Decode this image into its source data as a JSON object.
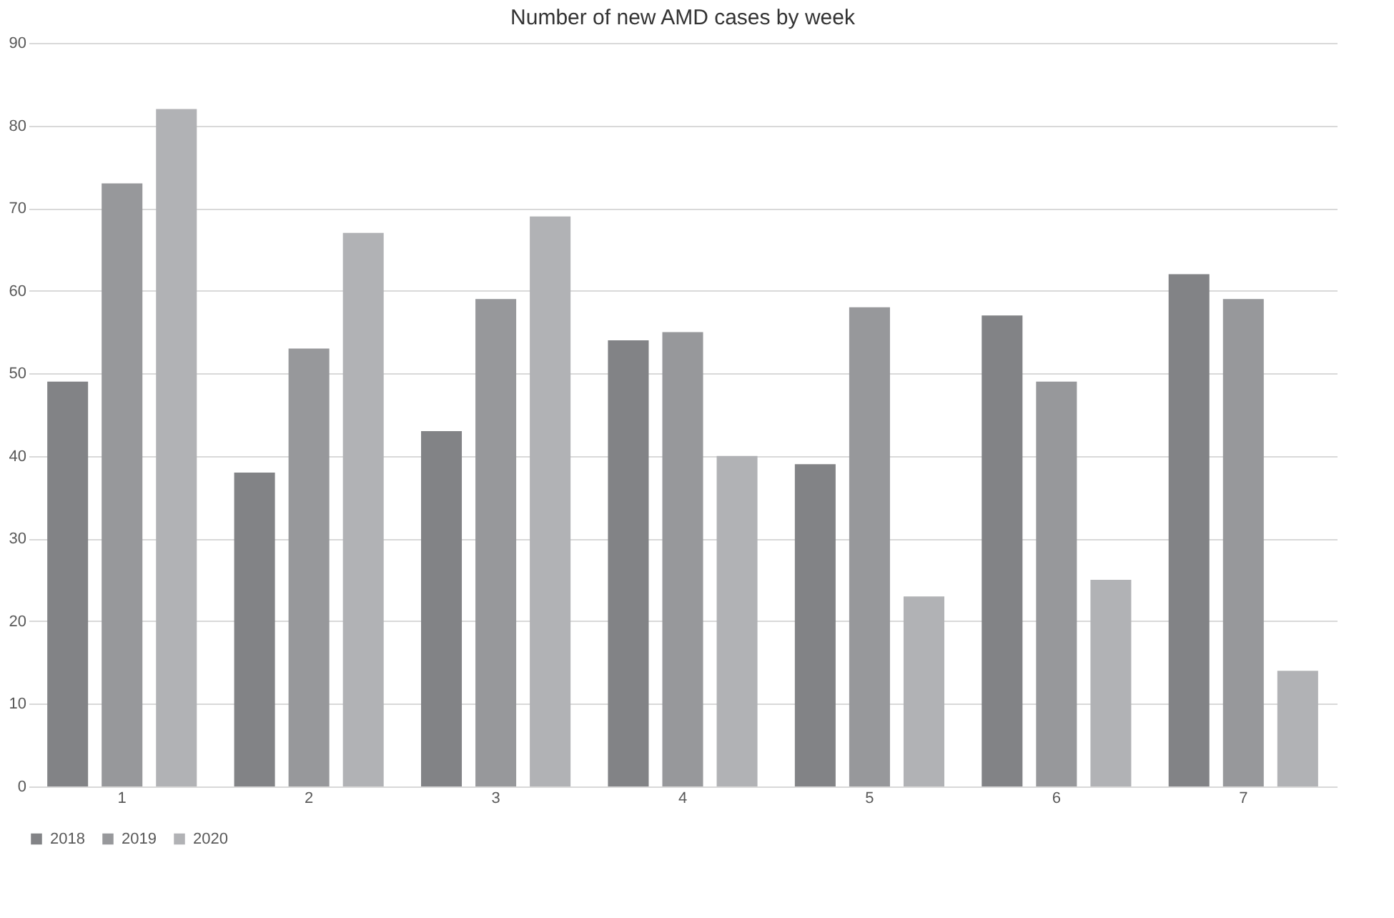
{
  "chart_data": {
    "type": "bar",
    "title": "Number of new AMD cases by week",
    "categories": [
      "1",
      "2",
      "3",
      "4",
      "5",
      "6",
      "7"
    ],
    "series": [
      {
        "name": "2018",
        "color": "#828386",
        "values": [
          49,
          38,
          43,
          54,
          39,
          57,
          62
        ]
      },
      {
        "name": "2019",
        "color": "#97989b",
        "values": [
          73,
          53,
          59,
          55,
          58,
          49,
          59
        ]
      },
      {
        "name": "2020",
        "color": "#b1b2b5",
        "values": [
          82,
          67,
          69,
          40,
          23,
          25,
          14
        ]
      }
    ],
    "ylim": [
      0,
      90
    ],
    "yticks": [
      0,
      10,
      20,
      30,
      40,
      50,
      60,
      70,
      80,
      90
    ],
    "grid": "y",
    "legend": "bottom"
  }
}
